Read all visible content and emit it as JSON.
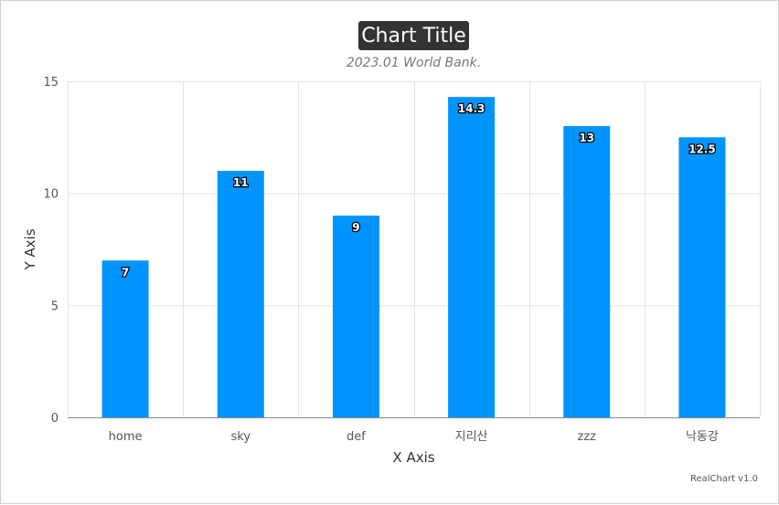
{
  "chart_data": {
    "type": "bar",
    "title": "Chart Title",
    "subtitle": "2023.01 World Bank.",
    "xlabel": "X Axis",
    "ylabel": "Y Axis",
    "categories": [
      "home",
      "sky",
      "def",
      "지리산",
      "zzz",
      "낙동강"
    ],
    "values": [
      7,
      11,
      9,
      14.3,
      13,
      12.5
    ],
    "ylim": [
      0,
      15
    ],
    "yticks": [
      0,
      5,
      10,
      15
    ],
    "grid": true,
    "legend": "none",
    "bar_color": "#0094ff",
    "title_bg_color": "#333333"
  },
  "credits": "RealChart v1.0"
}
